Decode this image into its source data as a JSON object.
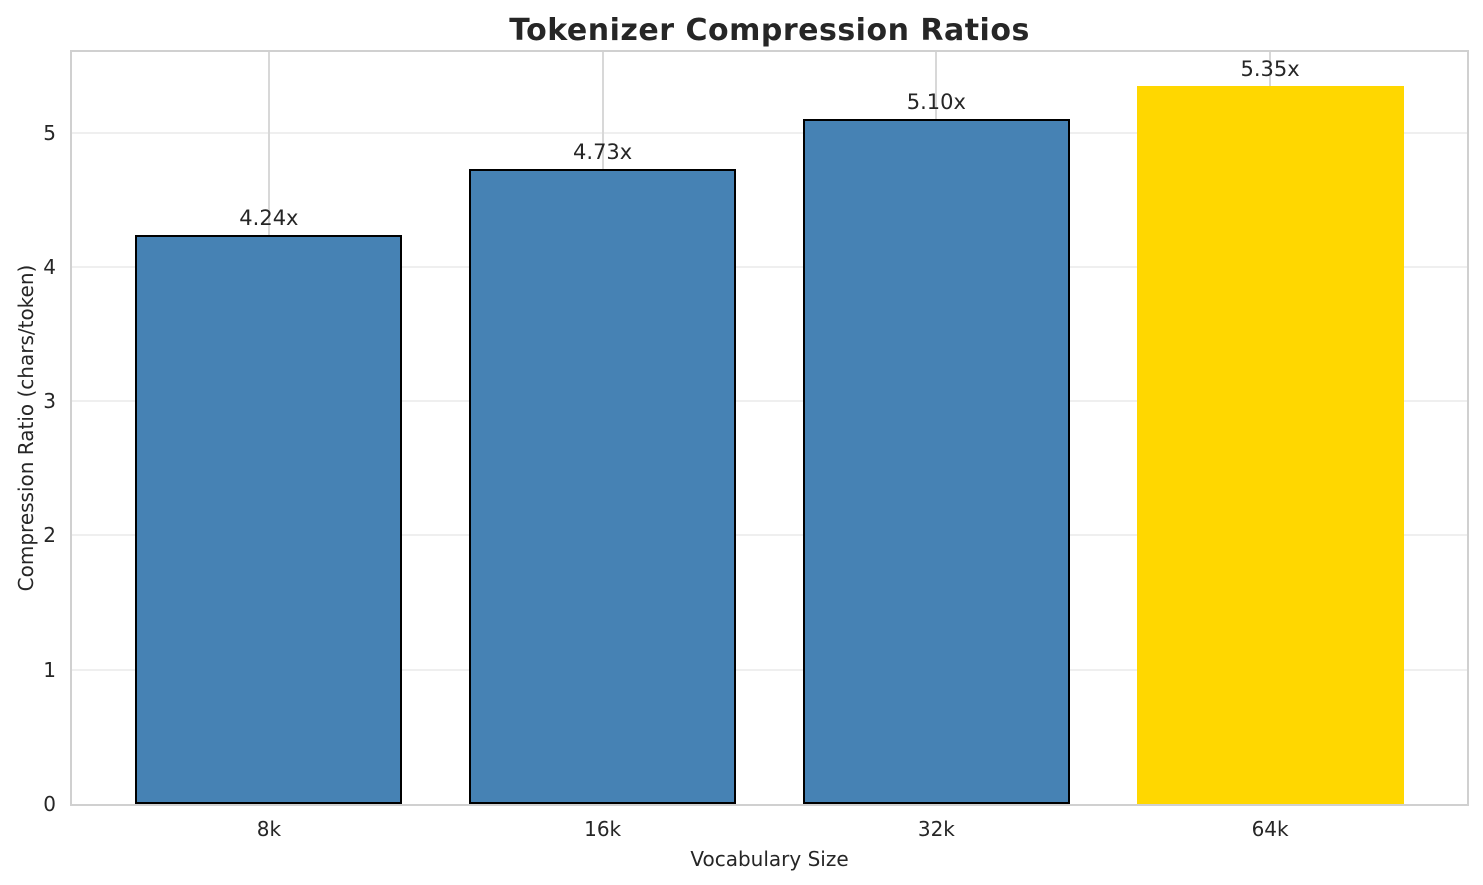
{
  "chart_data": {
    "type": "bar",
    "title": "Tokenizer Compression Ratios",
    "xlabel": "Vocabulary Size",
    "ylabel": "Compression Ratio (chars/token)",
    "categories": [
      "8k",
      "16k",
      "32k",
      "64k"
    ],
    "values": [
      4.24,
      4.73,
      5.1,
      5.35
    ],
    "bar_labels": [
      "4.24x",
      "4.73x",
      "5.10x",
      "5.35x"
    ],
    "bar_colors": [
      "#4682B4",
      "#4682B4",
      "#4682B4",
      "#FFD700"
    ],
    "bar_edge_colors": [
      "#000000",
      "#000000",
      "#000000",
      "none"
    ],
    "yticks": [
      0,
      1,
      2,
      3,
      4,
      5
    ],
    "ylim": [
      0,
      5.6
    ],
    "grid": true,
    "legend_position": "none",
    "highlight_index": 3
  },
  "style": {
    "text_color": "#262626",
    "spine_color": "#d0d0d0",
    "hgrid_color": "#efefef",
    "vgrid_color": "#d8d8d8",
    "background": "#ffffff",
    "bar_blue": "#4682B4",
    "bar_gold": "#FFD700",
    "bar_edge": "#000000"
  }
}
